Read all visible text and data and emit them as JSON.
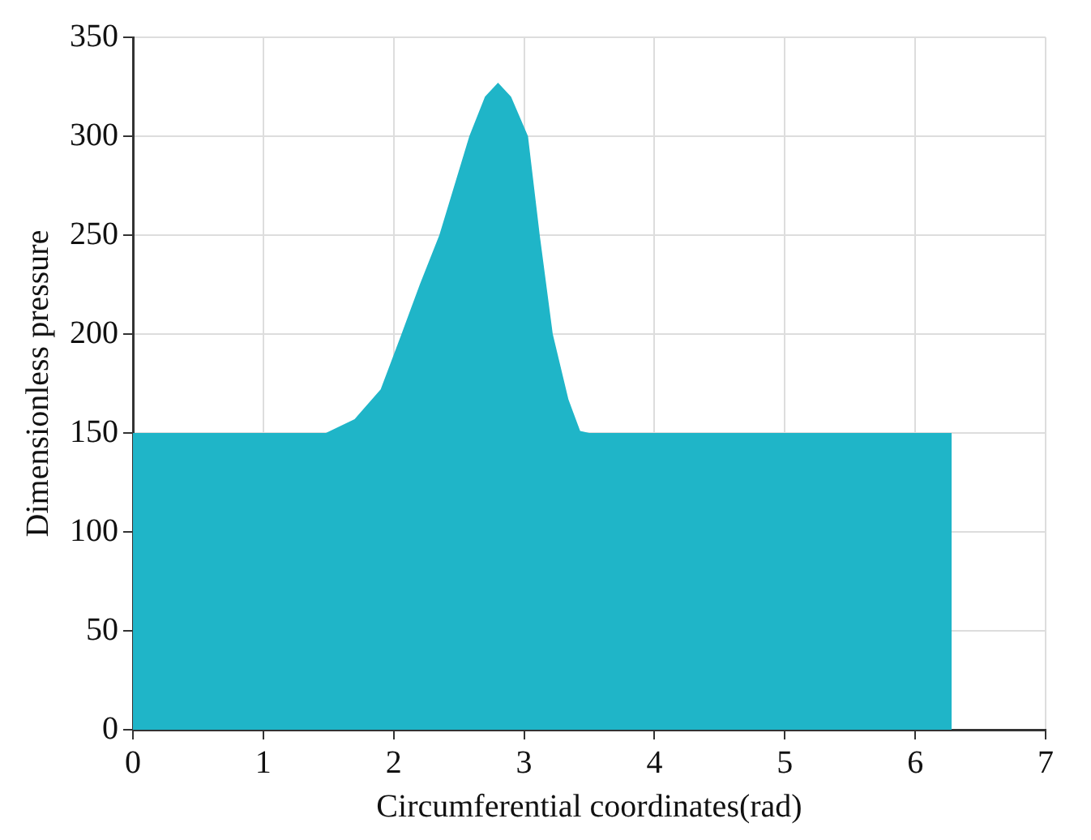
{
  "chart_data": {
    "type": "area",
    "xlabel": "Circumferential coordinates(rad)",
    "ylabel": "Dimensionless pressure",
    "x": [
      0,
      1.48,
      1.7,
      1.9,
      2.06,
      2.2,
      2.35,
      2.58,
      2.7,
      2.8,
      2.9,
      3.03,
      3.12,
      3.22,
      3.34,
      3.43,
      3.5,
      6.28
    ],
    "series": [
      {
        "color": "#1fb5c8",
        "values": [
          150,
          150,
          157,
          172,
          200,
          225,
          250,
          300,
          320,
          327,
          320,
          300,
          250,
          200,
          167,
          151,
          150,
          150
        ]
      }
    ],
    "xlim": [
      0,
      7
    ],
    "xticks": [
      0,
      1,
      2,
      3,
      4,
      5,
      6,
      7
    ],
    "ylim": [
      0,
      350
    ],
    "yticks": [
      0,
      50,
      100,
      150,
      200,
      250,
      300,
      350
    ],
    "grid": true,
    "legend": false
  }
}
